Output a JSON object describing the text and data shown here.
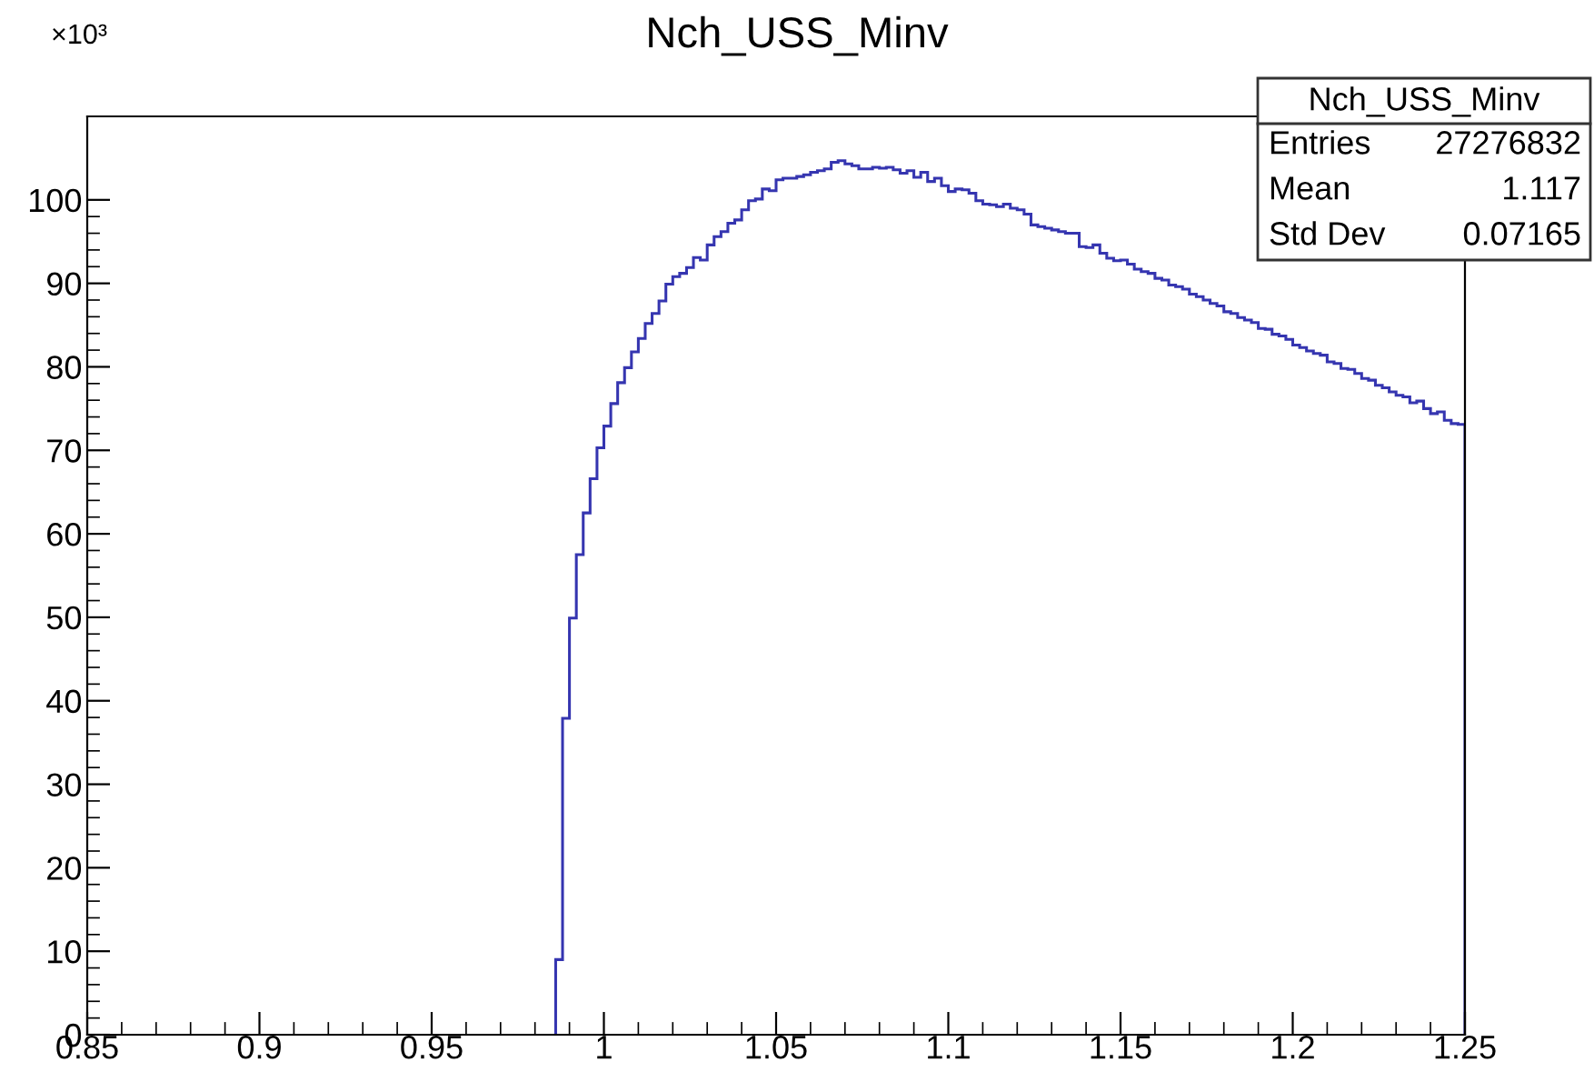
{
  "chart_data": {
    "type": "histogram",
    "title": "Nch_USS_Minv",
    "bins": [
      0.986,
      0.988,
      0.99,
      0.992,
      0.994,
      0.996,
      0.998,
      1.0,
      1.002,
      1.004,
      1.006,
      1.008,
      1.01,
      1.012,
      1.014,
      1.016,
      1.018,
      1.02,
      1.022,
      1.024,
      1.026,
      1.028,
      1.03,
      1.032,
      1.034,
      1.036,
      1.038,
      1.04,
      1.042,
      1.044,
      1.046,
      1.048,
      1.05,
      1.052,
      1.054,
      1.056,
      1.058,
      1.06,
      1.062,
      1.064,
      1.066,
      1.068,
      1.07,
      1.072,
      1.074,
      1.076,
      1.078,
      1.08,
      1.082,
      1.084,
      1.086,
      1.088,
      1.09,
      1.092,
      1.094,
      1.096,
      1.098,
      1.1,
      1.102,
      1.104,
      1.106,
      1.108,
      1.11,
      1.112,
      1.114,
      1.116,
      1.118,
      1.12,
      1.122,
      1.124,
      1.126,
      1.128,
      1.13,
      1.132,
      1.134,
      1.136,
      1.138,
      1.14,
      1.142,
      1.144,
      1.146,
      1.148,
      1.15,
      1.152,
      1.154,
      1.156,
      1.158,
      1.16,
      1.162,
      1.164,
      1.166,
      1.168,
      1.17,
      1.172,
      1.174,
      1.176,
      1.178,
      1.18,
      1.182,
      1.184,
      1.186,
      1.188,
      1.19,
      1.192,
      1.194,
      1.196,
      1.198,
      1.2,
      1.202,
      1.204,
      1.206,
      1.208,
      1.21,
      1.212,
      1.214,
      1.216,
      1.218,
      1.22,
      1.222,
      1.224,
      1.226,
      1.228,
      1.23,
      1.232,
      1.234,
      1.236,
      1.238,
      1.24,
      1.242,
      1.244,
      1.246,
      1.248,
      1.25
    ],
    "values": [
      9,
      37.9,
      49.9,
      57.5,
      62.5,
      66.6,
      70.3,
      72.9,
      75.6,
      78.1,
      79.9,
      81.8,
      83.4,
      85.2,
      86.4,
      87.9,
      89.9,
      90.8,
      91.2,
      91.9,
      93.1,
      92.8,
      94.6,
      95.6,
      96.2,
      97.2,
      97.6,
      98.8,
      99.9,
      100.1,
      101.3,
      101.1,
      102.4,
      102.6,
      102.6,
      102.8,
      103.0,
      103.3,
      103.5,
      103.7,
      104.5,
      104.7,
      104.3,
      104.1,
      103.7,
      103.7,
      103.9,
      103.8,
      103.9,
      103.6,
      103.2,
      103.5,
      102.7,
      103.3,
      102.2,
      102.6,
      101.7,
      101.0,
      101.3,
      101.2,
      100.8,
      99.9,
      99.5,
      99.4,
      99.2,
      99.5,
      99.0,
      98.8,
      98.3,
      97.0,
      96.8,
      96.6,
      96.4,
      96.2,
      96.0,
      96.0,
      94.4,
      94.3,
      94.6,
      93.6,
      93.0,
      92.7,
      92.8,
      92.3,
      91.7,
      91.4,
      91.2,
      90.6,
      90.4,
      89.8,
      89.6,
      89.3,
      88.7,
      88.4,
      88.0,
      87.6,
      87.3,
      86.6,
      86.4,
      85.9,
      85.6,
      85.3,
      84.6,
      84.5,
      83.9,
      83.7,
      83.3,
      82.6,
      82.3,
      81.9,
      81.6,
      81.4,
      80.6,
      80.4,
      79.8,
      79.7,
      79.2,
      78.6,
      78.4,
      77.8,
      77.5,
      77.0,
      76.6,
      76.4,
      75.7,
      75.9,
      75.0,
      74.4,
      74.6,
      73.6,
      73.2,
      73.1
    ],
    "color": "#3535b0",
    "xlim": [
      0.85,
      1.25
    ],
    "xticks": [
      0.85,
      0.9,
      0.95,
      {
        "value": 1,
        "label": "1"
      },
      1.05,
      1.1,
      1.15,
      1.2,
      1.25
    ],
    "ylim": [
      0,
      110
    ],
    "yticks": [
      0,
      10,
      20,
      30,
      40,
      50,
      60,
      70,
      80,
      90,
      100
    ],
    "grid": false,
    "legend": false,
    "annotations": [
      "×10³",
      "Nch_USS_Minv",
      "Entries",
      "27276832",
      "Mean",
      "1.117",
      "Std Dev",
      "0.07165"
    ]
  }
}
